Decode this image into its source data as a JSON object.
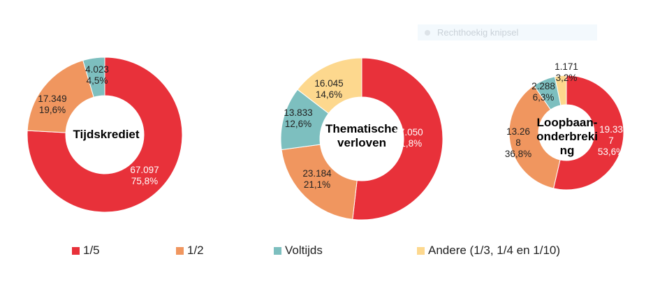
{
  "colors": {
    "1/5": "#E8313A",
    "1/2": "#F0965F",
    "Voltijds": "#7DBFBF",
    "Andere": "#FDD88E"
  },
  "overlay": {
    "label": "Rechthoekig knipsel"
  },
  "chart_data": [
    {
      "type": "pie",
      "title": "Tijdskrediet",
      "categories": [
        "1/5",
        "1/2",
        "Voltijds",
        "Andere (1/3, 1/4 en 1/10)"
      ],
      "values": [
        67097,
        17349,
        4023,
        0
      ],
      "labels": [
        {
          "value": "67.097",
          "pct": "75,8%"
        },
        {
          "value": "17.349",
          "pct": "19,6%"
        },
        {
          "value": "4.023",
          "pct": "4,5%"
        }
      ]
    },
    {
      "type": "pie",
      "title": "Thematische verloven",
      "categories": [
        "1/5",
        "1/2",
        "Voltijds",
        "Andere (1/3, 1/4 en 1/10)"
      ],
      "values": [
        57050,
        23184,
        13833,
        16045
      ],
      "labels": [
        {
          "value": "57.050",
          "pct": "51,8%"
        },
        {
          "value": "23.184",
          "pct": "21,1%"
        },
        {
          "value": "13.833",
          "pct": "12,6%"
        },
        {
          "value": "16.045",
          "pct": "14,6%"
        }
      ]
    },
    {
      "type": "pie",
      "title": "Loopbaan-onderbreking",
      "categories": [
        "1/5",
        "1/2",
        "Voltijds",
        "Andere (1/3, 1/4 en 1/10)"
      ],
      "values": [
        19337,
        13268,
        2288,
        1171
      ],
      "labels": [
        {
          "value": "19.337",
          "pct": "53,6%"
        },
        {
          "value": "13.268",
          "pct": "36,8%"
        },
        {
          "value": "2.288",
          "pct": "6,3%"
        },
        {
          "value": "1.171",
          "pct": "3,2%"
        }
      ]
    }
  ],
  "legend": [
    "1/5",
    "1/2",
    "Voltijds",
    "Andere (1/3, 1/4 en 1/10)"
  ]
}
